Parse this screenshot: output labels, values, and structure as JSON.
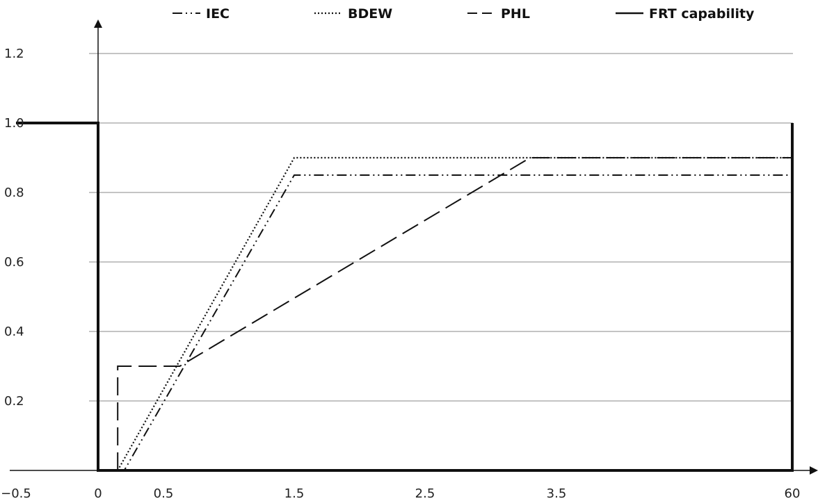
{
  "chart_data": {
    "type": "line",
    "title": "",
    "xlabel": "",
    "ylabel": "",
    "x_ticks": [
      "−0.5",
      "0",
      "0.5",
      "1.5",
      "2.5",
      "3.5",
      "60"
    ],
    "y_ticks": [
      "0.2",
      "0.4",
      "0.6",
      "0.8",
      "1.0",
      "1.2"
    ],
    "ylim": [
      0,
      1.3
    ],
    "grid": "horizontal",
    "legend_position": "top",
    "series": [
      {
        "name": "IEC",
        "style": "dash-dot-dot",
        "points": [
          [
            0.15,
            0.0
          ],
          [
            0.2,
            0.0
          ],
          [
            1.5,
            0.85
          ],
          [
            60,
            0.85
          ]
        ]
      },
      {
        "name": "BDEW",
        "style": "dotted",
        "points": [
          [
            0.15,
            0.0
          ],
          [
            1.5,
            0.9
          ],
          [
            60,
            0.9
          ]
        ]
      },
      {
        "name": "PHL",
        "style": "dashed",
        "points": [
          [
            0.15,
            0.0
          ],
          [
            0.15,
            0.3
          ],
          [
            0.625,
            0.3
          ],
          [
            3.3,
            0.9
          ],
          [
            60,
            0.9
          ]
        ]
      },
      {
        "name": "FRT capability",
        "style": "solid",
        "points": [
          [
            -0.5,
            1.0
          ],
          [
            0,
            1.0
          ],
          [
            0,
            0.0
          ],
          [
            60,
            0.0
          ],
          [
            60,
            1.0
          ]
        ]
      }
    ]
  }
}
